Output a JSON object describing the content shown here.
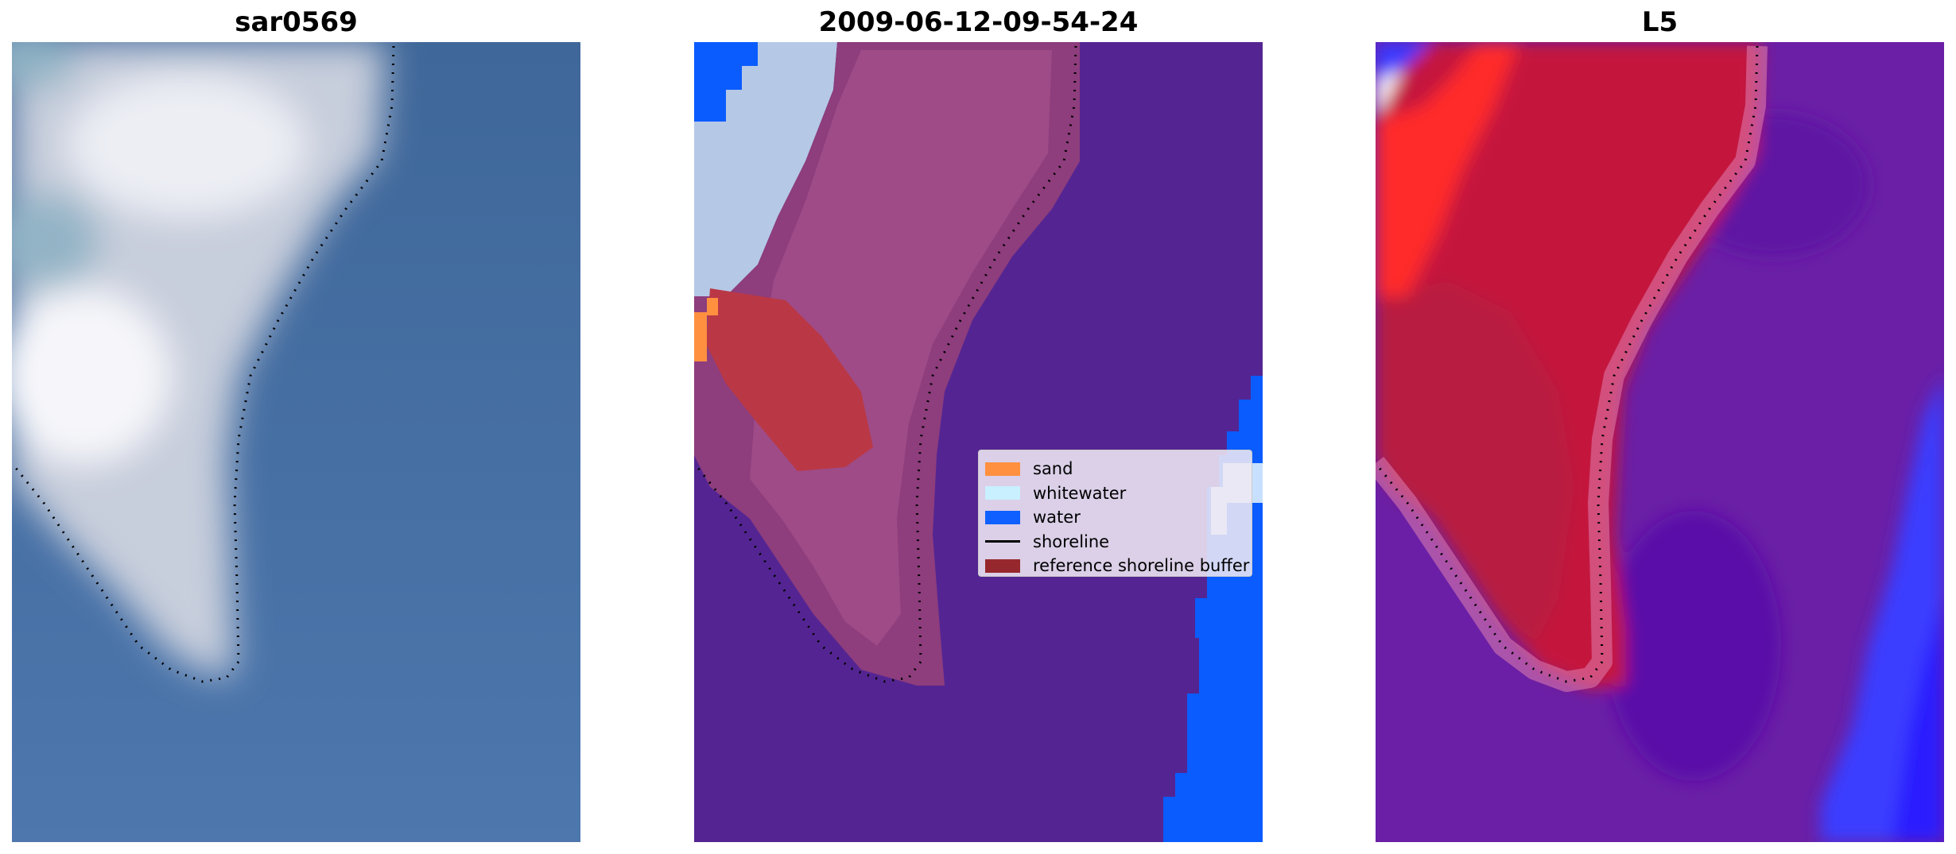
{
  "panels": [
    {
      "title": "sar0569"
    },
    {
      "title": "2009-06-12-09-54-24"
    },
    {
      "title": "L5"
    }
  ],
  "legend": [
    {
      "label": "sand",
      "kind": "patch",
      "color": "#ff9040"
    },
    {
      "label": "whitewater",
      "kind": "patch",
      "color": "#c8f0ff"
    },
    {
      "label": "water",
      "kind": "patch",
      "color": "#1060ff"
    },
    {
      "label": "shoreline",
      "kind": "line",
      "color": "#000000"
    },
    {
      "label": "reference shoreline buffer",
      "kind": "patch",
      "color": "#96282d"
    }
  ],
  "colors": {
    "rgb_water": "#4a72a8",
    "rgb_land": "#d8dde8",
    "rgb_white": "#f4f4f8",
    "class_water_bg": "#542592",
    "class_buffer": "#8c3a7e",
    "class_sand_buffer": "#b83848",
    "index_land": "#c0183a",
    "index_water_bg": "#6e1ea8",
    "index_bright": "#ff2a2a",
    "index_blue": "#3a3aff"
  }
}
